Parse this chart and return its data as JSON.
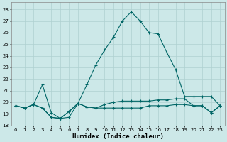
{
  "title": "",
  "xlabel": "Humidex (Indice chaleur)",
  "xlim": [
    -0.5,
    23.5
  ],
  "ylim": [
    18,
    28.6
  ],
  "yticks": [
    18,
    19,
    20,
    21,
    22,
    23,
    24,
    25,
    26,
    27,
    28
  ],
  "xticks": [
    0,
    1,
    2,
    3,
    4,
    5,
    6,
    7,
    8,
    9,
    10,
    11,
    12,
    13,
    14,
    15,
    16,
    17,
    18,
    19,
    20,
    21,
    22,
    23
  ],
  "bg_color": "#cce8e8",
  "grid_color": "#afd0d0",
  "line_color": "#006666",
  "line1_y": [
    19.7,
    19.5,
    19.8,
    21.5,
    19.1,
    18.6,
    18.7,
    19.9,
    21.5,
    23.2,
    24.5,
    25.6,
    27.0,
    27.8,
    27.0,
    26.0,
    25.9,
    24.3,
    22.8,
    20.5,
    20.5,
    20.5,
    20.5,
    19.7
  ],
  "line2_y": [
    19.7,
    19.5,
    19.8,
    19.5,
    18.7,
    18.6,
    19.2,
    19.9,
    19.6,
    19.5,
    19.8,
    20.0,
    20.1,
    20.1,
    20.1,
    20.1,
    20.2,
    20.2,
    20.3,
    20.3,
    19.7,
    19.7,
    19.1,
    19.7
  ],
  "line3_y": [
    19.7,
    19.5,
    19.8,
    19.5,
    18.7,
    18.6,
    19.2,
    19.9,
    19.6,
    19.5,
    19.5,
    19.5,
    19.5,
    19.5,
    19.5,
    19.7,
    19.7,
    19.7,
    19.8,
    19.8,
    19.7,
    19.7,
    19.1,
    19.7
  ],
  "marker": "+",
  "markersize": 3.0,
  "linewidth": 0.8,
  "xlabel_fontsize": 6.5,
  "tick_fontsize": 5.0
}
